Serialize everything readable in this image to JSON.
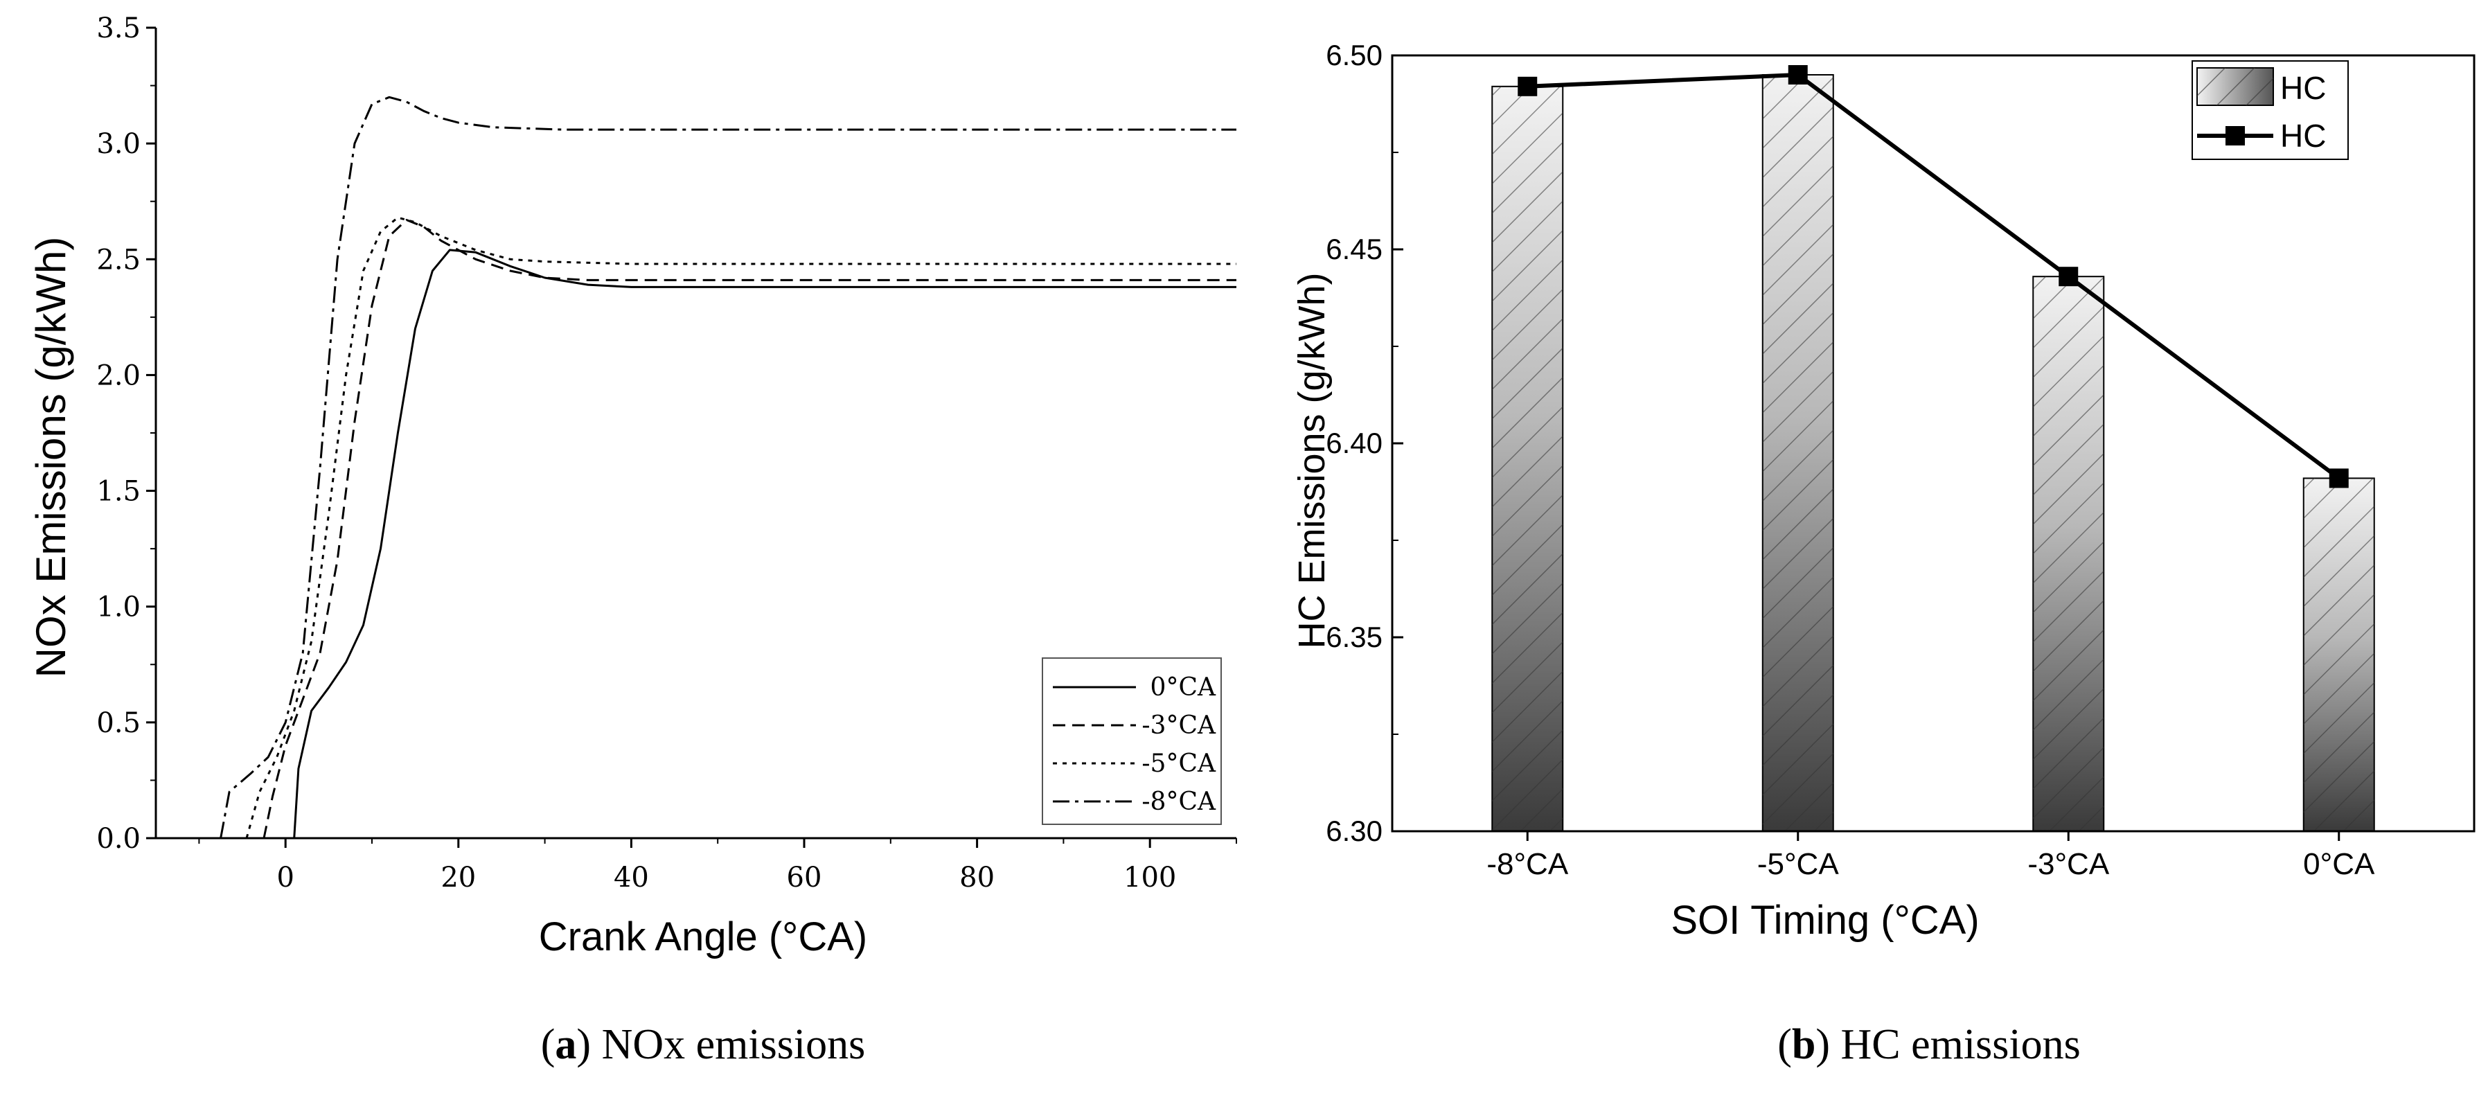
{
  "chart_data": [
    {
      "panel": "a",
      "type": "line",
      "title": "",
      "xlabel": "Crank Angle (°CA)",
      "ylabel": "NOx Emissions (g/kWh)",
      "xlim": [
        -15,
        110
      ],
      "ylim": [
        0,
        3.5
      ],
      "xticks": [
        "0",
        "20",
        "40",
        "60",
        "80",
        "100"
      ],
      "yticks": [
        "0.0",
        "0.5",
        "1.0",
        "1.5",
        "2.0",
        "2.5",
        "3.0",
        "3.5"
      ],
      "legend_position": "bottom-right",
      "series": [
        {
          "name": "0°CA",
          "style": "solid",
          "x": [
            1,
            1.5,
            3,
            5,
            7,
            9,
            11,
            13,
            15,
            17,
            19,
            22,
            26,
            30,
            35,
            40,
            50,
            60,
            80,
            100,
            110
          ],
          "y": [
            0,
            0.3,
            0.55,
            0.65,
            0.76,
            0.92,
            1.25,
            1.75,
            2.2,
            2.45,
            2.54,
            2.53,
            2.47,
            2.42,
            2.39,
            2.38,
            2.38,
            2.38,
            2.38,
            2.38,
            2.38
          ]
        },
        {
          "name": "-3°CA",
          "style": "dashed",
          "x": [
            -2.5,
            -1.5,
            0,
            2,
            4,
            6,
            8,
            10,
            12,
            14,
            16,
            18,
            22,
            26,
            30,
            35,
            40,
            60,
            80,
            100,
            110
          ],
          "y": [
            0,
            0.18,
            0.4,
            0.6,
            0.8,
            1.2,
            1.8,
            2.3,
            2.6,
            2.67,
            2.64,
            2.58,
            2.5,
            2.45,
            2.42,
            2.41,
            2.41,
            2.41,
            2.41,
            2.41,
            2.41
          ]
        },
        {
          "name": "-5°CA",
          "style": "dotted",
          "x": [
            -4.5,
            -3,
            -1,
            1,
            3,
            5,
            7,
            9,
            11,
            13,
            15,
            18,
            22,
            26,
            30,
            40,
            60,
            80,
            100,
            110
          ],
          "y": [
            0,
            0.2,
            0.35,
            0.55,
            0.85,
            1.4,
            2.0,
            2.45,
            2.62,
            2.68,
            2.66,
            2.6,
            2.54,
            2.5,
            2.49,
            2.48,
            2.48,
            2.48,
            2.48,
            2.48
          ]
        },
        {
          "name": "-8°CA",
          "style": "dash-dot",
          "x": [
            -7.5,
            -6.5,
            -4,
            -2,
            0,
            2,
            4,
            6,
            8,
            10,
            12,
            14,
            16,
            18,
            20,
            24,
            28,
            32,
            40,
            50,
            60,
            80,
            100,
            110
          ],
          "y": [
            0,
            0.2,
            0.28,
            0.35,
            0.5,
            0.8,
            1.6,
            2.5,
            3.0,
            3.17,
            3.2,
            3.18,
            3.14,
            3.11,
            3.09,
            3.07,
            3.065,
            3.06,
            3.06,
            3.06,
            3.06,
            3.06,
            3.06,
            3.06
          ]
        }
      ],
      "caption_letter": "a",
      "caption_text": "NOx emissions"
    },
    {
      "panel": "b",
      "type": "bar",
      "title": "",
      "xlabel": "SOI Timing (°CA)",
      "ylabel": "HC Emissions (g/kWh)",
      "ylim": [
        6.3,
        6.5
      ],
      "yticks": [
        "6.30",
        "6.35",
        "6.40",
        "6.45",
        "6.50"
      ],
      "categories": [
        "-8°CA",
        "-5°CA",
        "-3°CA",
        "0°CA"
      ],
      "series": [
        {
          "name": "HC",
          "type": "bar",
          "values": [
            6.492,
            6.495,
            6.443,
            6.391
          ]
        },
        {
          "name": "HC",
          "type": "line",
          "values": [
            6.492,
            6.495,
            6.443,
            6.391
          ]
        }
      ],
      "legend_position": "top-right",
      "caption_letter": "b",
      "caption_text": "HC emissions"
    }
  ],
  "captions": {
    "a": {
      "open": "(",
      "letter": "a",
      "close": ")",
      "text": " NOx emissions"
    },
    "b": {
      "open": "(",
      "letter": "b",
      "close": ")",
      "text": " HC emissions"
    }
  }
}
